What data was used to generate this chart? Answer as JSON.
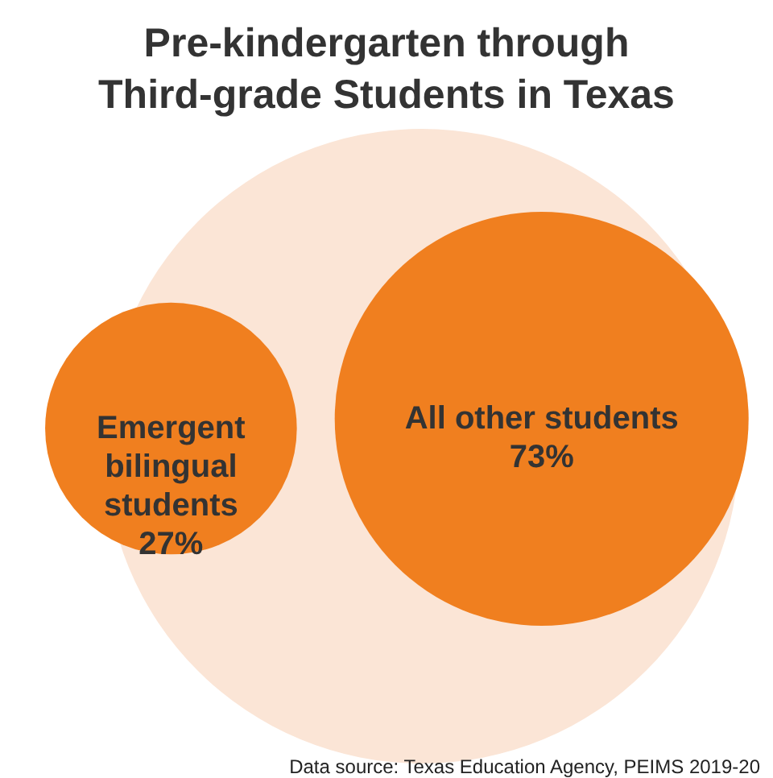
{
  "chart_data": {
    "type": "other",
    "title": "Pre-kindergarten through Third-grade Students in Texas",
    "categories": [
      "Emergent bilingual students",
      "All other students"
    ],
    "values": [
      27,
      73
    ],
    "value_labels": [
      "27%",
      "73%"
    ],
    "colors": [
      "#f07f1f",
      "#f07f1f"
    ],
    "annotations": [
      "Data source: Texas Education Agency, PEIMS 2019-20"
    ]
  }
}
